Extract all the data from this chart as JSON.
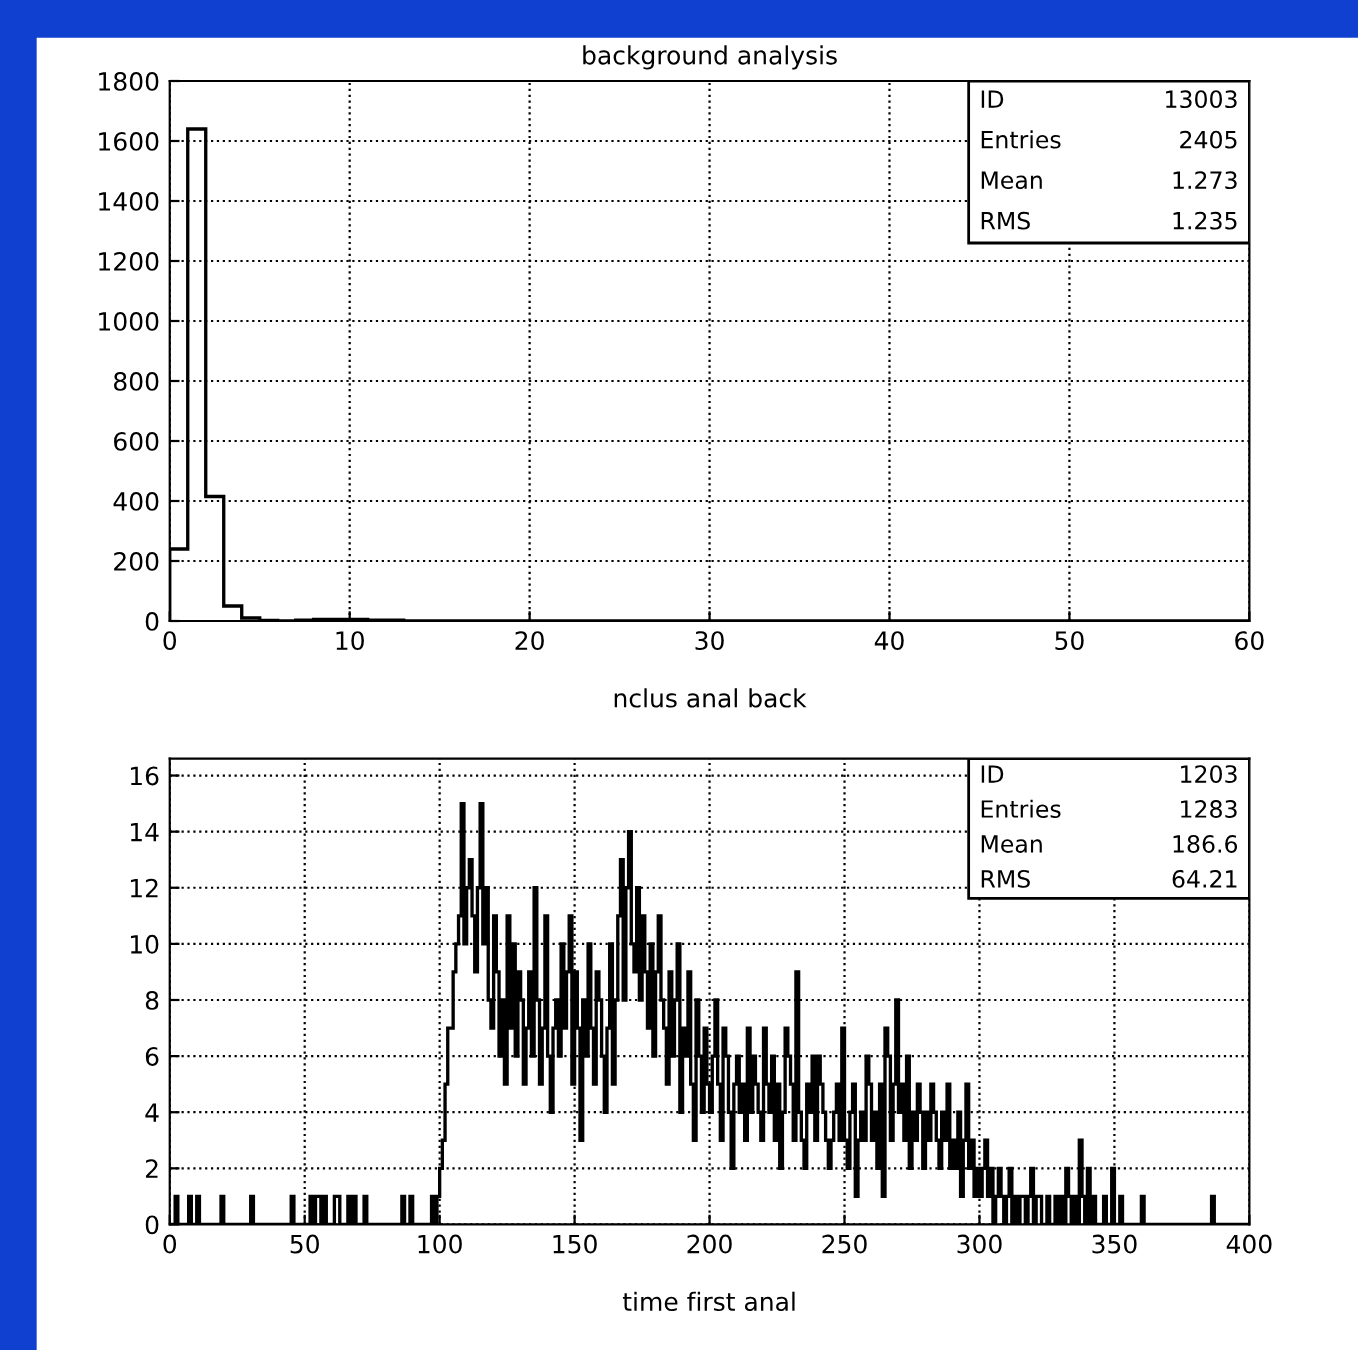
{
  "chart_data": [
    {
      "type": "histogram",
      "title": "background analysis",
      "xlabel": "nclus anal back",
      "color": "#000000",
      "bins": [
        0,
        1,
        2,
        3,
        4,
        5,
        6,
        7,
        8,
        9,
        10,
        11,
        12,
        13,
        14,
        15,
        16,
        17,
        18,
        19,
        20,
        21,
        22,
        23,
        24,
        25,
        26,
        27,
        28,
        29,
        30,
        31,
        32,
        33,
        34,
        35,
        36,
        37,
        38,
        39,
        40,
        41,
        42,
        43,
        44,
        45,
        46,
        47,
        48,
        49,
        50,
        51,
        52,
        53,
        54,
        55,
        56,
        57,
        58,
        59,
        60
      ],
      "values": [
        240,
        1640,
        415,
        50,
        10,
        2,
        0,
        3,
        5,
        5,
        5,
        3,
        3,
        0,
        0,
        0,
        0,
        0,
        0,
        0,
        0,
        0,
        0,
        0,
        0,
        0,
        0,
        0,
        0,
        0,
        0,
        0,
        0,
        0,
        0,
        0,
        0,
        0,
        0,
        0,
        0,
        0,
        0,
        0,
        0,
        0,
        0,
        0,
        0,
        0,
        0,
        0,
        0,
        0,
        0,
        0,
        0,
        0,
        0,
        0
      ],
      "xlim": [
        0,
        60
      ],
      "xticks": [
        0,
        10,
        20,
        30,
        40,
        50,
        60
      ],
      "ylim": [
        0,
        1800
      ],
      "yticks": [
        0,
        200,
        400,
        600,
        800,
        1000,
        1200,
        1400,
        1600,
        1800
      ],
      "grid": true,
      "line_style": "solid",
      "annotations": [
        "ID",
        "13003",
        "Entries",
        "2405",
        "Mean",
        "1.273",
        "RMS",
        "1.235"
      ]
    },
    {
      "type": "histogram",
      "xlabel": "time first anal",
      "color": "#000000",
      "bins": [
        0,
        1,
        2,
        3,
        4,
        5,
        6,
        7,
        8,
        9,
        10,
        11,
        12,
        13,
        14,
        15,
        16,
        17,
        18,
        19,
        20,
        21,
        22,
        23,
        24,
        25,
        26,
        27,
        28,
        29,
        30,
        31,
        32,
        33,
        34,
        35,
        36,
        37,
        38,
        39,
        40,
        41,
        42,
        43,
        44,
        45,
        46,
        47,
        48,
        49,
        50,
        51,
        52,
        53,
        54,
        55,
        56,
        57,
        58,
        59,
        60,
        61,
        62,
        63,
        64,
        65,
        66,
        67,
        68,
        69,
        70,
        71,
        72,
        73,
        74,
        75,
        76,
        77,
        78,
        79,
        80,
        81,
        82,
        83,
        84,
        85,
        86,
        87,
        88,
        89,
        90,
        91,
        92,
        93,
        94,
        95,
        96,
        97,
        98,
        99,
        100,
        101,
        102,
        103,
        104,
        105,
        106,
        107,
        108,
        109,
        110,
        111,
        112,
        113,
        114,
        115,
        116,
        117,
        118,
        119,
        120,
        121,
        122,
        123,
        124,
        125,
        126,
        127,
        128,
        129,
        130,
        131,
        132,
        133,
        134,
        135,
        136,
        137,
        138,
        139,
        140,
        141,
        142,
        143,
        144,
        145,
        146,
        147,
        148,
        149,
        150,
        151,
        152,
        153,
        154,
        155,
        156,
        157,
        158,
        159,
        160,
        161,
        162,
        163,
        164,
        165,
        166,
        167,
        168,
        169,
        170,
        171,
        172,
        173,
        174,
        175,
        176,
        177,
        178,
        179,
        180,
        181,
        182,
        183,
        184,
        185,
        186,
        187,
        188,
        189,
        190,
        191,
        192,
        193,
        194,
        195,
        196,
        197,
        198,
        199,
        200,
        201,
        202,
        203,
        204,
        205,
        206,
        207,
        208,
        209,
        210,
        211,
        212,
        213,
        214,
        215,
        216,
        217,
        218,
        219,
        220,
        221,
        222,
        223,
        224,
        225,
        226,
        227,
        228,
        229,
        230,
        231,
        232,
        233,
        234,
        235,
        236,
        237,
        238,
        239,
        240,
        241,
        242,
        243,
        244,
        245,
        246,
        247,
        248,
        249,
        250,
        251,
        252,
        253,
        254,
        255,
        256,
        257,
        258,
        259,
        260,
        261,
        262,
        263,
        264,
        265,
        266,
        267,
        268,
        269,
        270,
        271,
        272,
        273,
        274,
        275,
        276,
        277,
        278,
        279,
        280,
        281,
        282,
        283,
        284,
        285,
        286,
        287,
        288,
        289,
        290,
        291,
        292,
        293,
        294,
        295,
        296,
        297,
        298,
        299,
        300,
        301,
        302,
        303,
        304,
        305,
        306,
        307,
        308,
        309,
        310,
        311,
        312,
        313,
        314,
        315,
        316,
        317,
        318,
        319,
        320,
        321,
        322,
        323,
        324,
        325,
        326,
        327,
        328,
        329,
        330,
        331,
        332,
        333,
        334,
        335,
        336,
        337,
        338,
        339,
        340,
        341,
        342,
        343,
        344,
        345,
        346,
        347,
        348,
        349,
        350,
        351,
        352,
        353,
        354,
        355,
        356,
        357,
        358,
        359,
        360,
        361,
        362,
        363,
        364,
        365,
        366,
        367,
        368,
        369,
        370,
        371,
        372,
        373,
        374,
        375,
        376,
        377,
        378,
        379,
        380,
        381,
        382,
        383,
        384,
        385,
        386,
        387,
        388,
        389,
        390,
        391,
        392,
        393,
        394,
        395,
        396,
        397,
        398,
        399,
        400
      ],
      "values": [
        0,
        0,
        1,
        0,
        0,
        0,
        0,
        1,
        0,
        0,
        1,
        0,
        0,
        0,
        0,
        0,
        0,
        0,
        0,
        1,
        0,
        0,
        0,
        0,
        0,
        0,
        0,
        0,
        0,
        0,
        1,
        0,
        0,
        0,
        0,
        0,
        0,
        0,
        0,
        0,
        0,
        0,
        0,
        0,
        0,
        1,
        0,
        0,
        0,
        0,
        0,
        0,
        1,
        0,
        1,
        1,
        0,
        1,
        0,
        0,
        0,
        1,
        1,
        0,
        0,
        0,
        1,
        0,
        1,
        0,
        0,
        0,
        1,
        0,
        0,
        0,
        0,
        0,
        0,
        0,
        0,
        0,
        0,
        0,
        0,
        0,
        1,
        0,
        0,
        1,
        0,
        0,
        0,
        0,
        0,
        0,
        0,
        1,
        0,
        1,
        2,
        3,
        5,
        7,
        7,
        9,
        10,
        11,
        15,
        10,
        12,
        13,
        11,
        9,
        12,
        15,
        10,
        12,
        8,
        7,
        11,
        9,
        6,
        8,
        5,
        11,
        7,
        10,
        6,
        9,
        8,
        5,
        7,
        9,
        6,
        12,
        8,
        5,
        7,
        11,
        6,
        4,
        7,
        8,
        6,
        10,
        7,
        9,
        11,
        5,
        9,
        7,
        3,
        8,
        6,
        10,
        7,
        5,
        9,
        8,
        6,
        4,
        7,
        10,
        5,
        8,
        11,
        13,
        8,
        12,
        14,
        10,
        9,
        12,
        8,
        11,
        9,
        7,
        10,
        6,
        9,
        11,
        8,
        7,
        5,
        9,
        6,
        8,
        10,
        4,
        7,
        6,
        9,
        5,
        3,
        8,
        6,
        4,
        7,
        5,
        4,
        6,
        8,
        5,
        3,
        7,
        6,
        4,
        2,
        5,
        6,
        4,
        5,
        3,
        7,
        4,
        6,
        5,
        4,
        3,
        7,
        5,
        4,
        6,
        3,
        5,
        2,
        4,
        7,
        6,
        5,
        3,
        9,
        4,
        3,
        2,
        5,
        4,
        6,
        3,
        6,
        5,
        4,
        3,
        2,
        3,
        4,
        5,
        3,
        7,
        3,
        2,
        4,
        5,
        1,
        3,
        4,
        3,
        6,
        5,
        3,
        4,
        2,
        5,
        1,
        7,
        6,
        3,
        5,
        8,
        4,
        5,
        3,
        6,
        2,
        4,
        3,
        5,
        4,
        2,
        4,
        3,
        5,
        4,
        3,
        2,
        4,
        3,
        5,
        2,
        3,
        2,
        4,
        1,
        3,
        5,
        2,
        3,
        1,
        2,
        1,
        2,
        3,
        1,
        2,
        0,
        1,
        2,
        1,
        0,
        1,
        2,
        0,
        1,
        0,
        1,
        1,
        0,
        1,
        2,
        0,
        1,
        1,
        0,
        0,
        1,
        0,
        0,
        1,
        0,
        1,
        0,
        2,
        1,
        0,
        1,
        0,
        3,
        1,
        0,
        2,
        0,
        1,
        0,
        0,
        0,
        1,
        0,
        0,
        2,
        0,
        0,
        1,
        0,
        0,
        0,
        0,
        0,
        0,
        0,
        1,
        0,
        0,
        0,
        0,
        0,
        0,
        0,
        0,
        0,
        0,
        0,
        0,
        0,
        0,
        0,
        0,
        0,
        0,
        0,
        0,
        0,
        0,
        0,
        0,
        0,
        1,
        0,
        0,
        0,
        0,
        0,
        0,
        0,
        0,
        0,
        0,
        0,
        0,
        0
      ],
      "xlim": [
        0,
        400
      ],
      "xticks": [
        0,
        50,
        100,
        150,
        200,
        250,
        300,
        350,
        400
      ],
      "ylim": [
        0,
        16.6
      ],
      "yticks": [
        0,
        2,
        4,
        6,
        8,
        10,
        12,
        14,
        16
      ],
      "grid": true,
      "line_style": "solid",
      "annotations": [
        "ID",
        "1203",
        "Entries",
        "1283",
        "Mean",
        "186.6",
        "RMS",
        "64.21"
      ]
    }
  ]
}
